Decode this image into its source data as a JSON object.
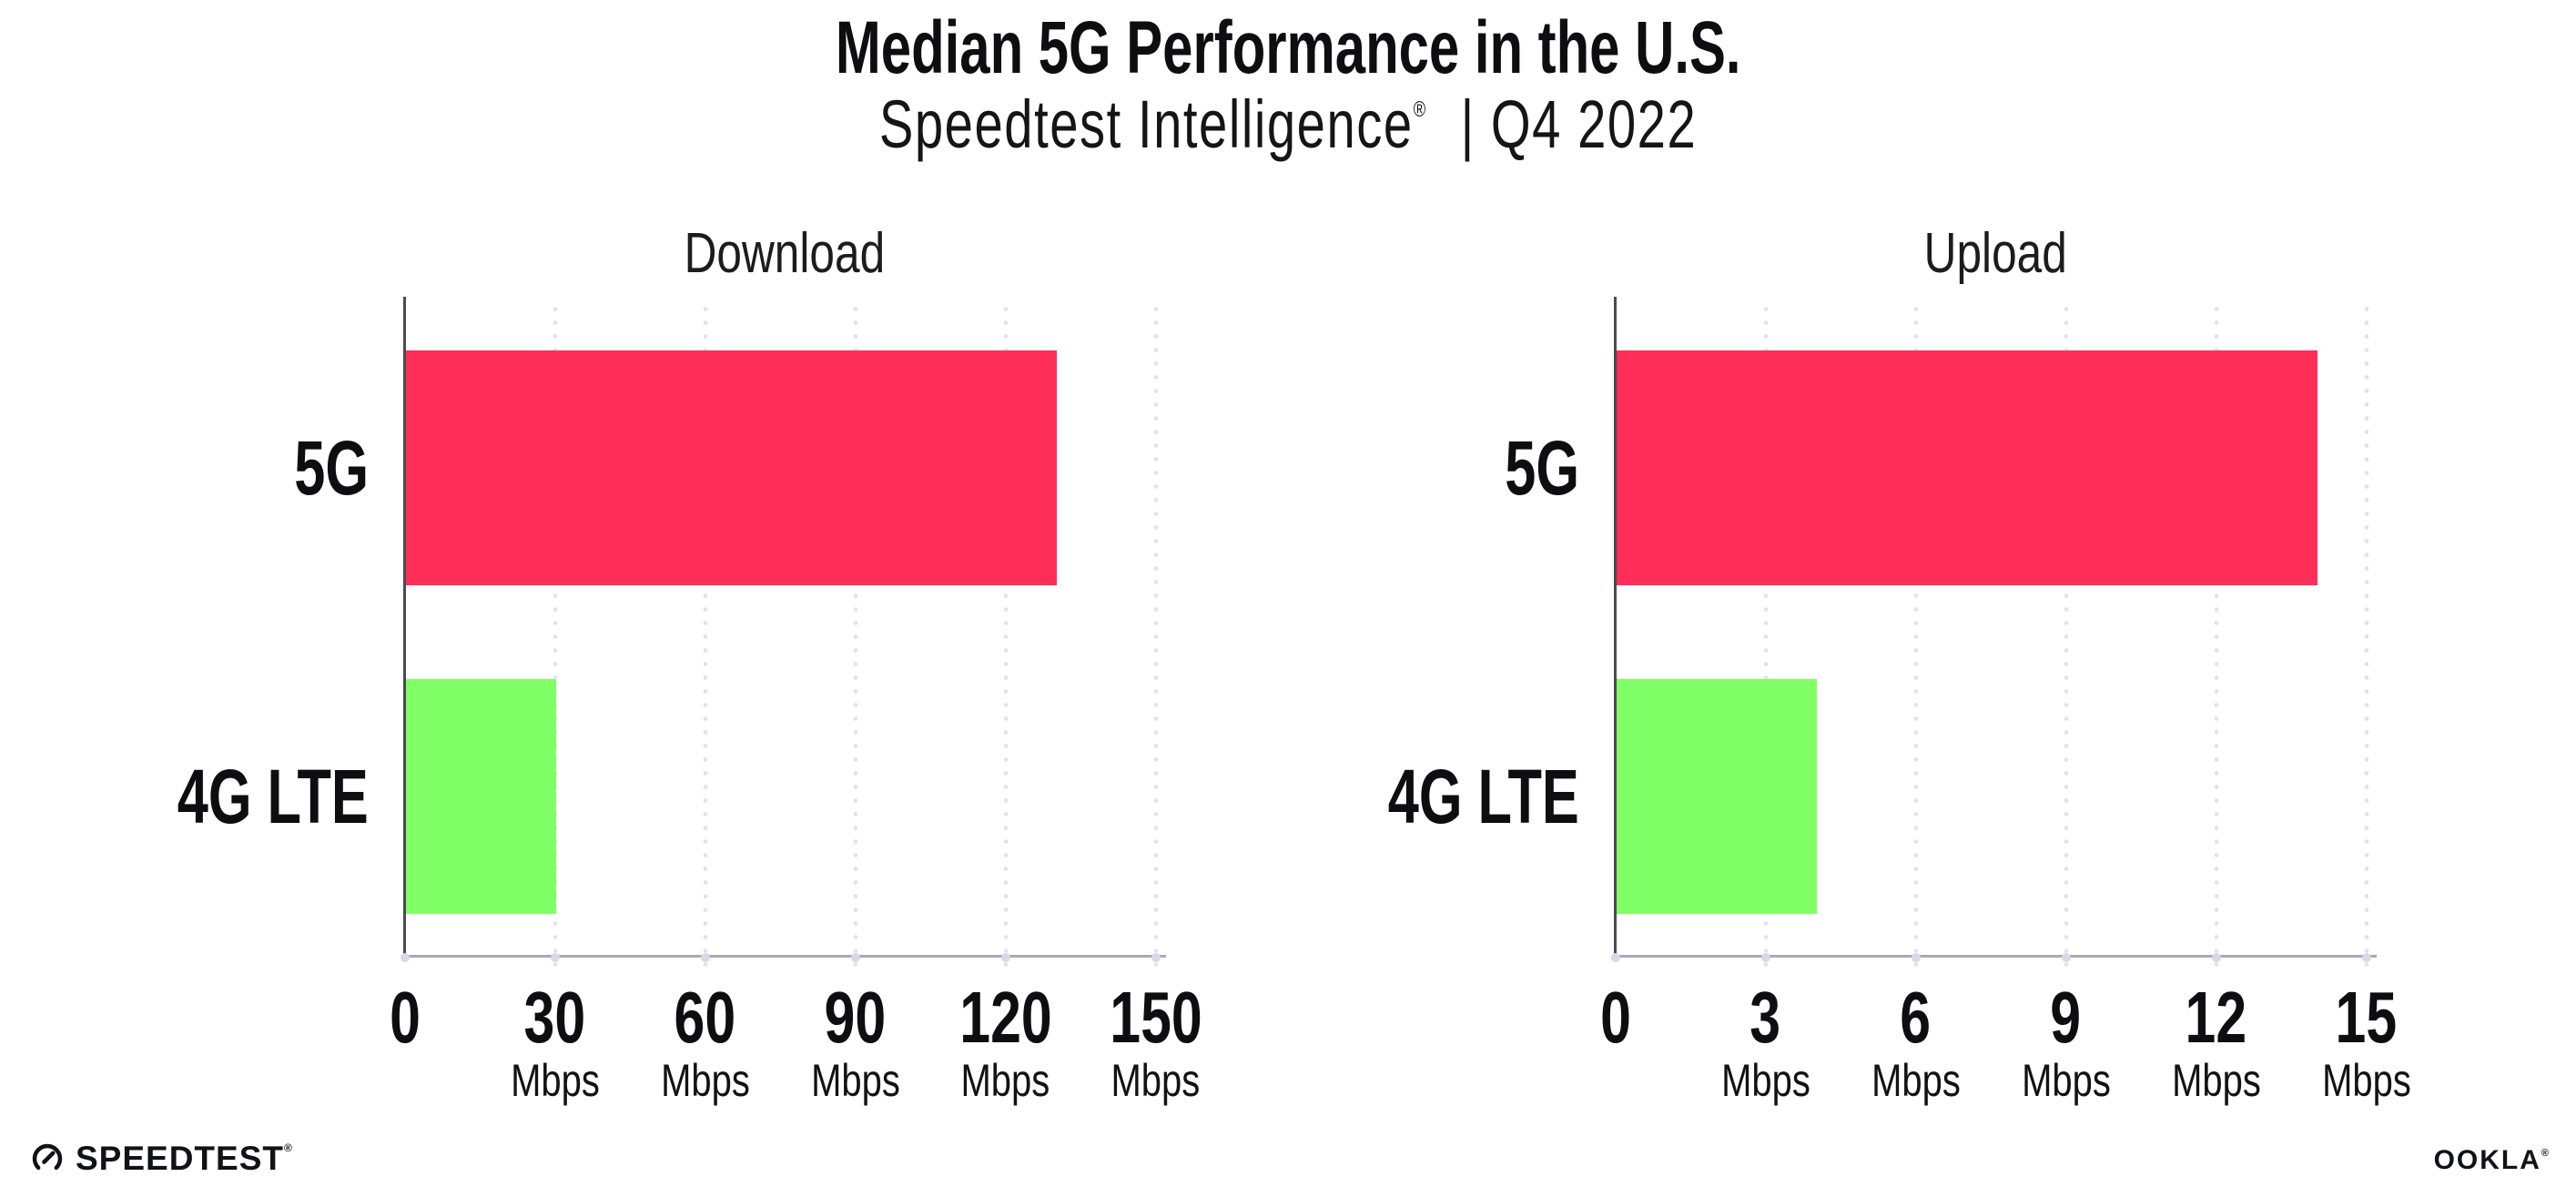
{
  "header": {
    "title": "Median 5G Performance in the U.S.",
    "subtitle_brand": "Speedtest Intelligence",
    "subtitle_reg": "®",
    "subtitle_rest": "| Q4 2022"
  },
  "chart_data": [
    {
      "type": "bar",
      "orientation": "horizontal",
      "title": "Download",
      "categories": [
        "5G",
        "4G LTE"
      ],
      "values": [
        130,
        30
      ],
      "unit": "Mbps",
      "xlabel": "",
      "ylabel": "",
      "xlim": [
        0,
        150
      ],
      "ticks": [
        0,
        30,
        60,
        90,
        120,
        150
      ],
      "bar_colors": [
        "#ff2e58",
        "#80ff66"
      ],
      "grid": "dotted-vertical",
      "legend": "none"
    },
    {
      "type": "bar",
      "orientation": "horizontal",
      "title": "Upload",
      "categories": [
        "5G",
        "4G LTE"
      ],
      "values": [
        14,
        4
      ],
      "unit": "Mbps",
      "xlabel": "",
      "ylabel": "",
      "xlim": [
        0,
        15
      ],
      "ticks": [
        0,
        3,
        6,
        9,
        12,
        15
      ],
      "bar_colors": [
        "#ff2e58",
        "#80ff66"
      ],
      "grid": "dotted-vertical",
      "legend": "none"
    }
  ],
  "footer": {
    "speedtest": {
      "label": "SPEEDTEST",
      "trademark": "®",
      "icon": "speedtest-gauge-icon"
    },
    "ookla": {
      "label": "OOKLA",
      "trademark": "®"
    }
  },
  "colors": {
    "bar_5g": "#ff2e58",
    "bar_4g_lte": "#80ff66",
    "y_axis_line": "#4a4a52",
    "x_axis_line": "#a9a9b2",
    "gridline_dots": "#e2e2ee",
    "axis_tick_dots": "#d8d8e6",
    "text": "#0d0d12",
    "background": "#ffffff"
  }
}
